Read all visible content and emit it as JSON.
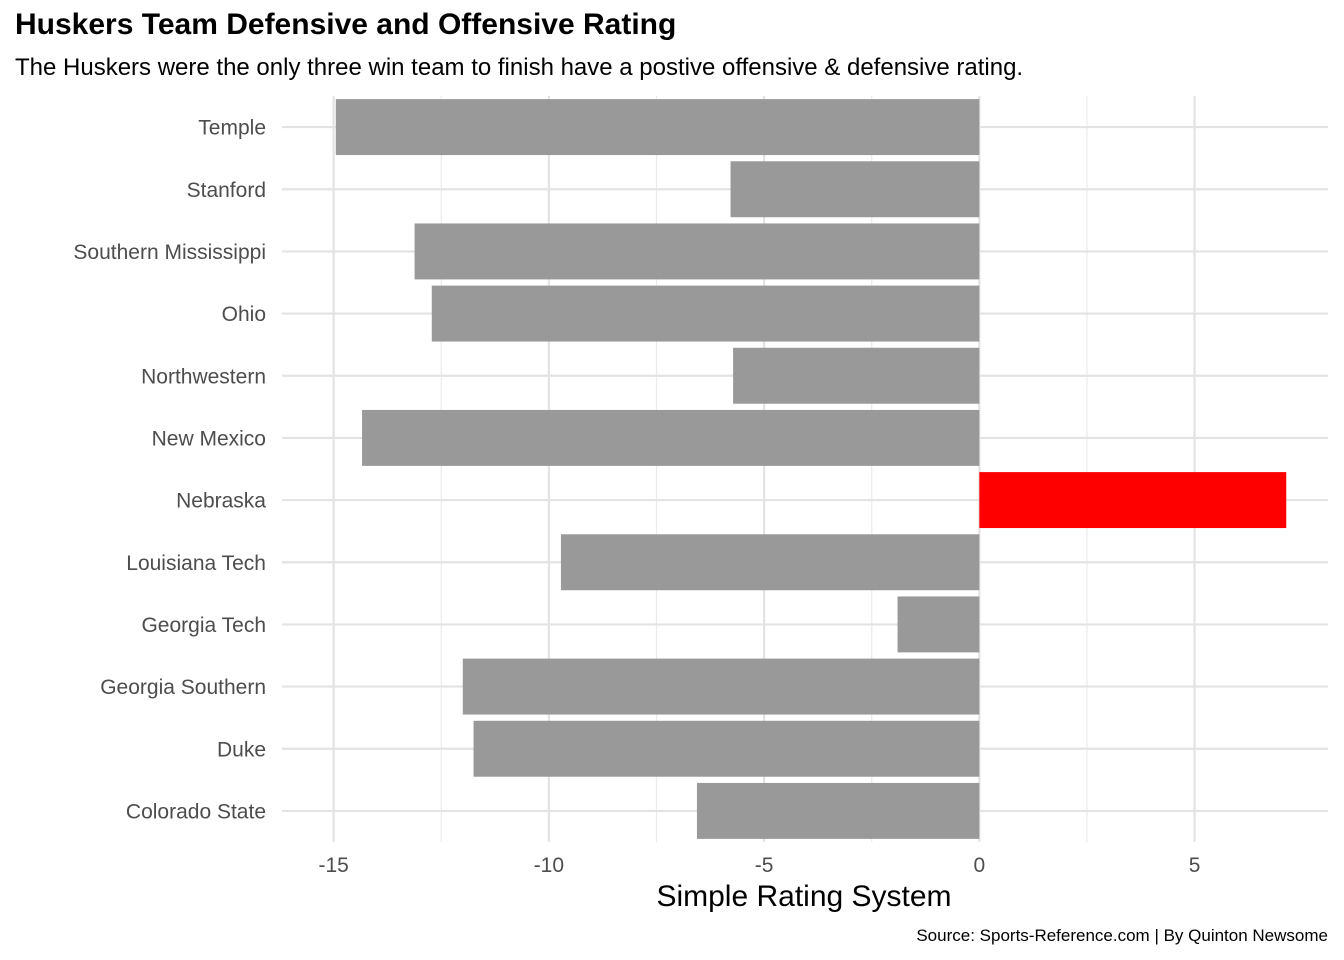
{
  "chart_data": {
    "type": "bar",
    "orientation": "horizontal",
    "title": "Huskers Team Defensive and Offensive Rating",
    "subtitle": "The Huskers were the only three win team to finish have a postive offensive & defensive rating.",
    "xlabel": "Simple Rating System",
    "ylabel": "",
    "caption": "Source: Sports-Reference.com | By Quinton Newsome",
    "categories": [
      "Temple",
      "Stanford",
      "Southern Mississippi",
      "Ohio",
      "Northwestern",
      "New Mexico",
      "Nebraska",
      "Louisiana Tech",
      "Georgia Tech",
      "Georgia Southern",
      "Duke",
      "Colorado State"
    ],
    "values": [
      -14.95,
      -5.78,
      -13.12,
      -12.72,
      -5.72,
      -14.34,
      7.13,
      -9.72,
      -1.9,
      -12.0,
      -11.75,
      -6.56
    ],
    "xlim": [
      -16.2,
      8.1
    ],
    "xticks": [
      -15,
      -10,
      -5,
      0,
      5
    ],
    "grid": true,
    "legend": "none",
    "colors": {
      "default": "#999999",
      "highlight": "#ff0000"
    },
    "highlight_category": "Nebraska"
  }
}
